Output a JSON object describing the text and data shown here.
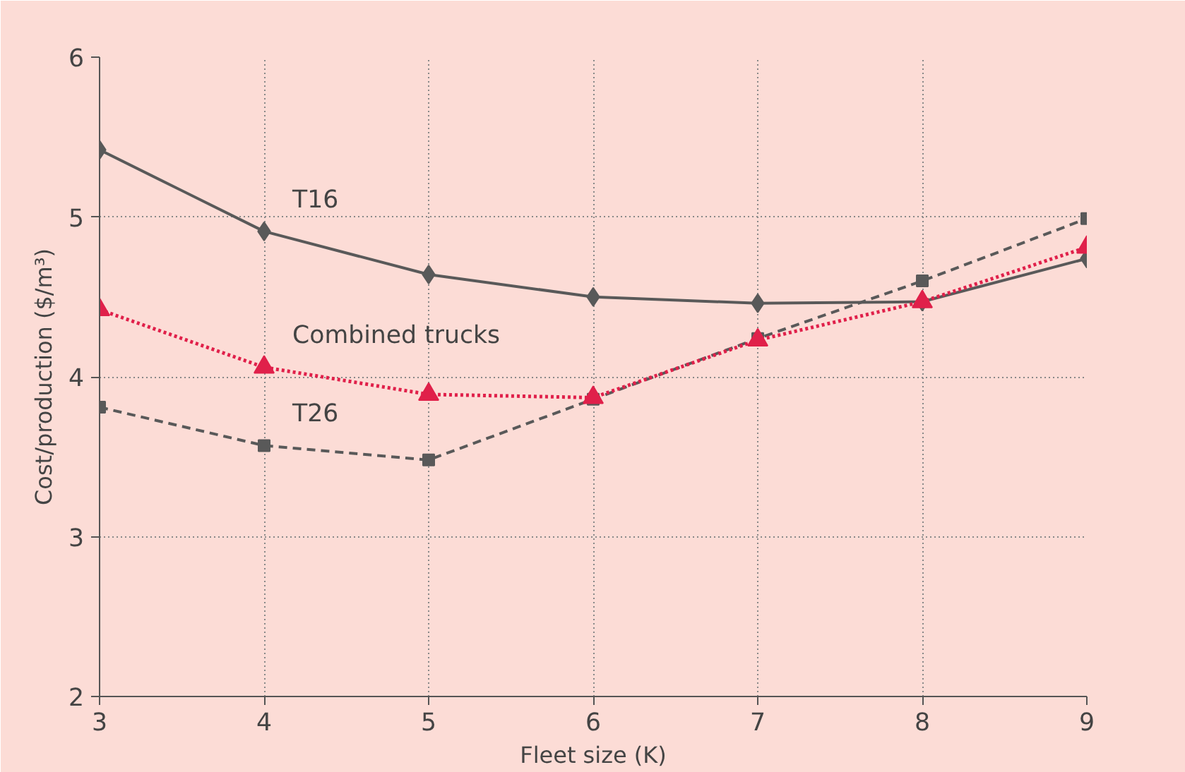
{
  "chart_data": {
    "type": "line",
    "xlabel": "Fleet size (K)",
    "ylabel": "Cost/production ($/m³)",
    "x": [
      3,
      4,
      5,
      6,
      7,
      8,
      9
    ],
    "xlim": [
      3,
      9
    ],
    "xticks": [
      3,
      4,
      5,
      6,
      7,
      8,
      9
    ],
    "ylim": [
      2,
      6
    ],
    "yticks": [
      2,
      3,
      4,
      5,
      6
    ],
    "grid": true,
    "legend": false,
    "series": [
      {
        "name": "T16",
        "color": "#595959",
        "marker": "diamond",
        "line_style": "solid",
        "values": [
          5.42,
          4.91,
          4.64,
          4.5,
          4.46,
          4.47,
          4.74
        ]
      },
      {
        "name": "T26",
        "color": "#595959",
        "marker": "square",
        "line_style": "dashed",
        "values": [
          3.81,
          3.57,
          3.48,
          3.86,
          4.24,
          4.6,
          4.99
        ]
      },
      {
        "name": "Combined trucks",
        "color": "#e0204a",
        "marker": "triangle",
        "line_style": "dotted",
        "values": [
          4.42,
          4.06,
          3.89,
          3.87,
          4.23,
          4.47,
          4.81
        ]
      }
    ]
  }
}
